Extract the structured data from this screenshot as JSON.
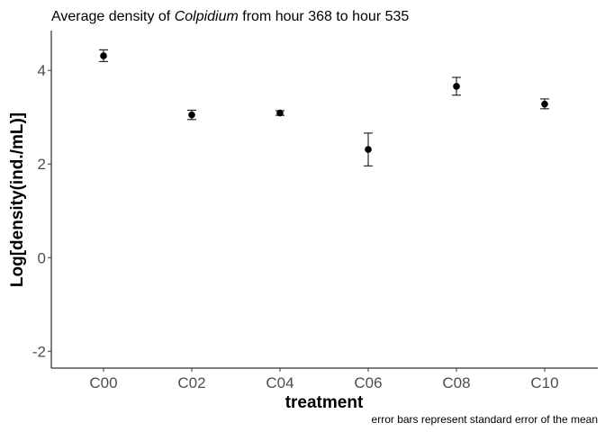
{
  "chart_data": {
    "type": "scatter",
    "title_parts": {
      "prefix": "Average density of ",
      "species": "Colpidium",
      "suffix": " from hour 368  to hour  535"
    },
    "xlabel": "treatment",
    "ylabel": "Log[density(ind./mL)]",
    "caption": "error bars represent standard error of the mean",
    "categories": [
      "C00",
      "C02",
      "C04",
      "C06",
      "C08",
      "C10"
    ],
    "series": [
      {
        "values": [
          4.31,
          3.05,
          3.09,
          2.31,
          3.66,
          3.28
        ],
        "error_low": [
          4.19,
          2.95,
          3.04,
          1.96,
          3.47,
          3.18
        ],
        "error_high": [
          4.44,
          3.15,
          3.14,
          2.66,
          3.85,
          3.39
        ]
      }
    ],
    "yticks": [
      -2,
      0,
      2,
      4
    ],
    "ylim": [
      -2.36,
      4.85
    ],
    "grid": false,
    "marker_color": "#000000"
  }
}
